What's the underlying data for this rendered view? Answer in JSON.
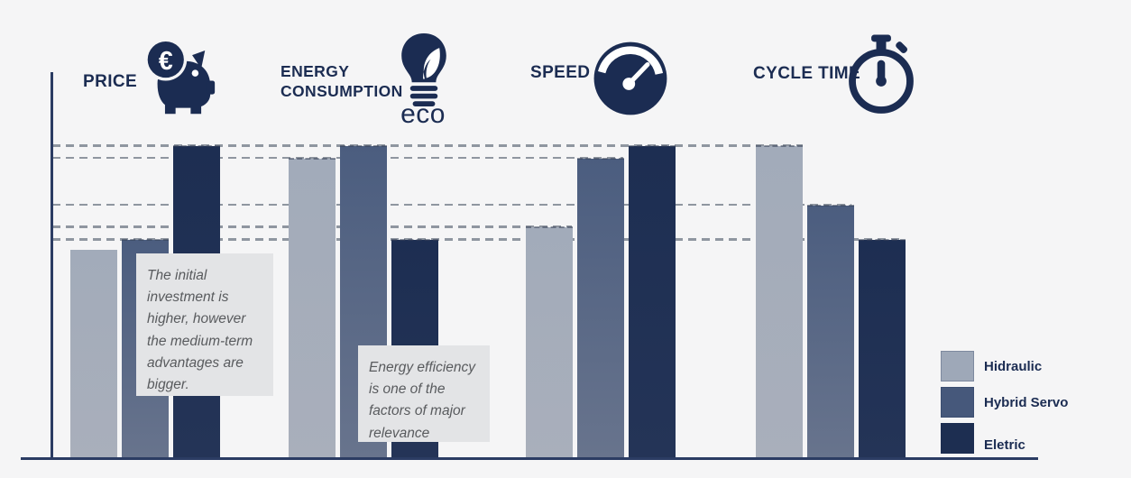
{
  "page": {
    "background": "#f5f5f6",
    "navy": "#1b2c52",
    "gridline_color": "#8f96a0",
    "note_background": "#e3e4e6",
    "note_text_color": "#595b5e"
  },
  "headers": [
    {
      "id": "price",
      "label": "PRICE",
      "icon": "piggy-bank-euro-icon"
    },
    {
      "id": "energy",
      "label": "ENERGY CONSUMPTION",
      "icon": "eco-lightbulb-icon",
      "caption": "eco"
    },
    {
      "id": "speed",
      "label": "SPEED",
      "icon": "speedometer-icon"
    },
    {
      "id": "cycle",
      "label": "CYCLE TIME",
      "icon": "stopwatch-icon"
    }
  ],
  "annotations": [
    {
      "target": "price",
      "text": "The initial investment is higher, however the medium-term advantages are bigger."
    },
    {
      "target": "energy",
      "text": "Energy efficiency is one of the factors of major relevance"
    }
  ],
  "chart_data": {
    "type": "bar",
    "categories": [
      "Price",
      "Energy Consumption",
      "Speed",
      "Cycle Time"
    ],
    "series": [
      {
        "name": "Hidraulic",
        "color": "#9ea8b8",
        "values": [
          67,
          96,
          74,
          100
        ]
      },
      {
        "name": "Hybrid Servo",
        "color": "#46587b",
        "values": [
          70,
          100,
          96,
          81
        ]
      },
      {
        "name": "Eletric",
        "color": "#1d2e51",
        "values": [
          100,
          70,
          100,
          70
        ]
      }
    ],
    "title": "",
    "xlabel": "",
    "ylabel": "",
    "ylim": [
      0,
      100
    ],
    "grid": "dashed horizontal lines at levels 70, 74, 81, 96, 100 (relative units)",
    "legend_position": "bottom-right",
    "value_units": "relative index (tallest bar = 100)"
  }
}
